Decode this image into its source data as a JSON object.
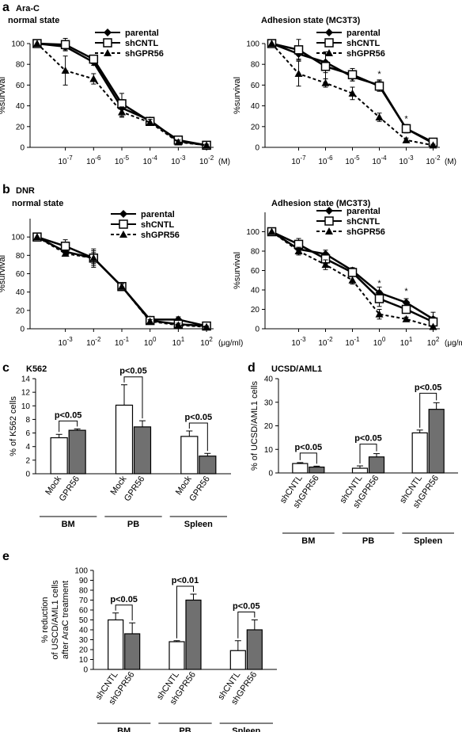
{
  "panels": {
    "a": "a",
    "b": "b",
    "c": "c",
    "d": "d",
    "e": "e"
  },
  "drug_a": "Ara-C",
  "drug_b": "DNR",
  "state_normal": "normal state",
  "state_adhesion": "Adhesion state  (MC3T3)",
  "ylabel_line": "%survival",
  "colors": {
    "line": "#000000",
    "bar_control": "#ffffff",
    "bar_treated": "#707070"
  },
  "chart_data": [
    {
      "id": "a-normal",
      "type": "line",
      "title": "normal state",
      "xlabel": "(M)",
      "ylabel": "%survival",
      "ylim": [
        0,
        100
      ],
      "y_ticks": [
        0,
        20,
        40,
        60,
        80,
        100
      ],
      "x_ticks": [
        "10-7",
        "10-6",
        "10-5",
        "10-4",
        "10-3",
        "10-2"
      ],
      "x_positions": [
        "0",
        "10-7",
        "10-6",
        "10-5",
        "10-4",
        "10-3",
        "10-2"
      ],
      "x_tick_base": "10",
      "x_tick_exps": [
        "-7",
        "-6",
        "-5",
        "-4",
        "-3",
        "-2"
      ],
      "x_unit": "(M)",
      "series": [
        {
          "name": "parental",
          "marker": "diamond",
          "dash": "solid",
          "values": [
            100,
            97,
            82,
            38,
            26,
            6,
            2
          ],
          "err": [
            0,
            3,
            3,
            8,
            3,
            2,
            1
          ]
        },
        {
          "name": "shCNTL",
          "marker": "square",
          "dash": "solid",
          "values": [
            100,
            99,
            85,
            42,
            25,
            7,
            2
          ],
          "err": [
            0,
            6,
            3,
            10,
            3,
            2,
            1
          ]
        },
        {
          "name": "shGPR56",
          "marker": "triangle",
          "dash": "dashed",
          "values": [
            100,
            74,
            66,
            34,
            24,
            5,
            2
          ],
          "err": [
            0,
            14,
            5,
            5,
            3,
            2,
            1
          ]
        }
      ],
      "stars": []
    },
    {
      "id": "a-adhesion",
      "type": "line",
      "title": "Adhesion state  (MC3T3)",
      "xlabel": "(M)",
      "ylabel": "%survival",
      "ylim": [
        0,
        100
      ],
      "y_ticks": [
        0,
        20,
        40,
        60,
        80,
        100
      ],
      "x_ticks": [
        "10-7",
        "10-6",
        "10-5",
        "10-4",
        "10-3",
        "10-2"
      ],
      "x_positions": [
        "0",
        "10-7",
        "10-6",
        "10-5",
        "10-4",
        "10-3",
        "10-2"
      ],
      "x_tick_base": "10",
      "x_tick_exps": [
        "-7",
        "-6",
        "-5",
        "-4",
        "-3",
        "-2"
      ],
      "x_unit": "(M)",
      "series": [
        {
          "name": "parental",
          "marker": "diamond",
          "dash": "solid",
          "values": [
            100,
            90,
            82,
            68,
            60,
            18,
            4
          ],
          "err": [
            0,
            5,
            10,
            4,
            5,
            4,
            3
          ]
        },
        {
          "name": "shCNTL",
          "marker": "square",
          "dash": "solid",
          "values": [
            100,
            94,
            78,
            70,
            59,
            18,
            5
          ],
          "err": [
            0,
            10,
            12,
            6,
            5,
            4,
            3
          ]
        },
        {
          "name": "shGPR56",
          "marker": "triangle",
          "dash": "dashed",
          "values": [
            100,
            71,
            62,
            52,
            29,
            7,
            2
          ],
          "err": [
            0,
            12,
            4,
            6,
            4,
            2,
            1
          ]
        }
      ],
      "stars": [
        {
          "x_index": 4,
          "y": 68,
          "text": "*"
        },
        {
          "x_index": 5,
          "y": 25,
          "text": "*"
        }
      ]
    },
    {
      "id": "b-normal",
      "type": "line",
      "title": "normal state",
      "xlabel": "(μg/ml)",
      "ylabel": "%survival",
      "ylim": [
        0,
        120
      ],
      "y_ticks": [
        0,
        20,
        40,
        60,
        80,
        100
      ],
      "x_ticks": [
        "10-3",
        "10-2",
        "10-1",
        "100",
        "101",
        "102"
      ],
      "x_positions": [
        "0",
        "10-3",
        "10-2",
        "10-1",
        "100",
        "101",
        "102"
      ],
      "x_tick_base": "10",
      "x_tick_exps": [
        "-3",
        "-2",
        "-1",
        "0",
        "1",
        "2"
      ],
      "x_unit": "(μg/ml)",
      "series": [
        {
          "name": "parental",
          "marker": "diamond",
          "dash": "solid",
          "values": [
            100,
            84,
            77,
            46,
            10,
            10,
            3
          ],
          "err": [
            0,
            4,
            6,
            3,
            3,
            3,
            1
          ]
        },
        {
          "name": "shCNTL",
          "marker": "square",
          "dash": "solid",
          "values": [
            100,
            90,
            77,
            46,
            9,
            5,
            3
          ],
          "err": [
            0,
            7,
            10,
            3,
            3,
            2,
            1
          ]
        },
        {
          "name": "shGPR56",
          "marker": "triangle",
          "dash": "dashed",
          "values": [
            100,
            82,
            77,
            46,
            8,
            4,
            2
          ],
          "err": [
            0,
            3,
            8,
            3,
            2,
            2,
            1
          ]
        }
      ],
      "stars": []
    },
    {
      "id": "b-adhesion",
      "type": "line",
      "title": "Adhesion state  (MC3T3)",
      "xlabel": "(μg/ml)",
      "ylabel": "%survival",
      "ylim": [
        0,
        120
      ],
      "y_ticks": [
        0,
        20,
        40,
        60,
        80,
        100
      ],
      "x_ticks": [
        "10-3",
        "10-2",
        "10-1",
        "100",
        "101",
        "102"
      ],
      "x_positions": [
        "0",
        "10-3",
        "10-2",
        "10-1",
        "100",
        "101",
        "102"
      ],
      "x_tick_base": "10",
      "x_tick_exps": [
        "-3",
        "-2",
        "-1",
        "0",
        "1",
        "2"
      ],
      "x_unit": "(μg/ml)",
      "series": [
        {
          "name": "parental",
          "marker": "diamond",
          "dash": "solid",
          "values": [
            100,
            82,
            77,
            60,
            37,
            27,
            10
          ],
          "err": [
            0,
            4,
            4,
            3,
            6,
            4,
            7
          ]
        },
        {
          "name": "shCNTL",
          "marker": "square",
          "dash": "solid",
          "values": [
            100,
            87,
            72,
            58,
            31,
            20,
            7
          ],
          "err": [
            0,
            6,
            5,
            4,
            8,
            4,
            5
          ]
        },
        {
          "name": "shGPR56",
          "marker": "triangle",
          "dash": "dashed",
          "values": [
            100,
            80,
            66,
            50,
            15,
            10,
            2
          ],
          "err": [
            0,
            4,
            5,
            4,
            5,
            2,
            1
          ]
        }
      ],
      "stars": [
        {
          "x_index": 4,
          "y": 44,
          "text": "*"
        },
        {
          "x_index": 5,
          "y": 36,
          "text": "*"
        }
      ]
    },
    {
      "id": "c",
      "type": "bar",
      "title": "K562",
      "ylabel": "% of K562 cells",
      "ylim": [
        0,
        14
      ],
      "y_ticks": [
        0,
        2,
        4,
        6,
        8,
        10,
        12,
        14
      ],
      "groups": [
        {
          "name": "BM",
          "bars": [
            {
              "label": "Mock",
              "value": 5.3,
              "err": 0.5
            },
            {
              "label": "GPR56",
              "value": 6.4,
              "err": 0.2
            }
          ],
          "pvalue": "p<0.05"
        },
        {
          "name": "PB",
          "bars": [
            {
              "label": "Mock",
              "value": 10.1,
              "err": 3.0
            },
            {
              "label": "GPR56",
              "value": 6.9,
              "err": 0.9
            }
          ],
          "pvalue": "p<0.05"
        },
        {
          "name": "Spleen",
          "bars": [
            {
              "label": "Mock",
              "value": 5.5,
              "err": 0.8
            },
            {
              "label": "GPR56",
              "value": 2.6,
              "err": 0.4
            }
          ],
          "pvalue": "p<0.05"
        }
      ]
    },
    {
      "id": "d",
      "type": "bar",
      "title": "UCSD/AML1",
      "ylabel": "% of UCSD/AML1 cells",
      "ylim": [
        0,
        40
      ],
      "y_ticks": [
        0,
        10,
        20,
        30,
        40
      ],
      "groups": [
        {
          "name": "BM",
          "bars": [
            {
              "label": "shCNTL",
              "value": 4.0,
              "err": 0.4
            },
            {
              "label": "shGPR56",
              "value": 2.5,
              "err": 0.4
            }
          ],
          "pvalue": "p<0.05"
        },
        {
          "name": "PB",
          "bars": [
            {
              "label": "shCNTL",
              "value": 2.0,
              "err": 1.0
            },
            {
              "label": "shGPR56",
              "value": 6.8,
              "err": 1.4
            }
          ],
          "pvalue": "p<0.05"
        },
        {
          "name": "Spleen",
          "bars": [
            {
              "label": "shCNTL",
              "value": 17.0,
              "err": 1.2
            },
            {
              "label": "shGPR56",
              "value": 27.0,
              "err": 2.8
            }
          ],
          "pvalue": "p<0.05"
        }
      ]
    },
    {
      "id": "e",
      "type": "bar",
      "title": "",
      "ylabel": "% reduction\nof USCD/AML1 cells\nafter AraC treatment",
      "ylim": [
        0,
        100
      ],
      "y_ticks": [
        0,
        10,
        20,
        30,
        40,
        50,
        60,
        70,
        80,
        90,
        100
      ],
      "groups": [
        {
          "name": "BM",
          "bars": [
            {
              "label": "shCNTL",
              "value": 50,
              "err": 7
            },
            {
              "label": "shGPR56",
              "value": 36,
              "err": 11
            }
          ],
          "pvalue": "p<0.05"
        },
        {
          "name": "PB",
          "bars": [
            {
              "label": "shCNTL",
              "value": 28,
              "err": 1
            },
            {
              "label": "shGPR56",
              "value": 70,
              "err": 6
            }
          ],
          "pvalue": "p<0.01"
        },
        {
          "name": "Spleen",
          "bars": [
            {
              "label": "shCNTL",
              "value": 19,
              "err": 10
            },
            {
              "label": "shGPR56",
              "value": 40,
              "err": 10
            }
          ],
          "pvalue": "p<0.05"
        }
      ]
    }
  ]
}
